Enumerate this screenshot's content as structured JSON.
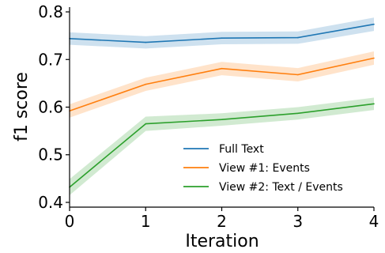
{
  "chart_data": {
    "type": "line",
    "x": [
      0,
      1,
      2,
      3,
      4
    ],
    "x_tick_labels": [
      "0",
      "1",
      "2",
      "3",
      "4"
    ],
    "y_tick_values": [
      0.4,
      0.5,
      0.6,
      0.7,
      0.8
    ],
    "y_tick_labels": [
      "0.4",
      "0.5",
      "0.6",
      "0.7",
      "0.8"
    ],
    "xlim": [
      0,
      4
    ],
    "ylim": [
      0.39,
      0.81
    ],
    "xlabel": "Iteration",
    "ylabel": "f1 score",
    "grid": false,
    "legend_position": "lower-right",
    "series": [
      {
        "name": "Full Text",
        "color": "#1f77b4",
        "values": [
          0.744,
          0.736,
          0.745,
          0.746,
          0.774
        ],
        "lower": [
          0.731,
          0.723,
          0.732,
          0.733,
          0.76
        ],
        "upper": [
          0.757,
          0.749,
          0.758,
          0.759,
          0.788
        ]
      },
      {
        "name": "View #1: Events",
        "color": "#ff7f0e",
        "values": [
          0.592,
          0.648,
          0.681,
          0.668,
          0.703
        ],
        "lower": [
          0.578,
          0.634,
          0.667,
          0.654,
          0.689
        ],
        "upper": [
          0.606,
          0.662,
          0.695,
          0.682,
          0.717
        ]
      },
      {
        "name": "View #2: Text / Events",
        "color": "#2ca02c",
        "values": [
          0.432,
          0.565,
          0.574,
          0.587,
          0.607
        ],
        "lower": [
          0.415,
          0.55,
          0.561,
          0.574,
          0.594
        ],
        "upper": [
          0.449,
          0.58,
          0.587,
          0.6,
          0.62
        ]
      }
    ]
  }
}
